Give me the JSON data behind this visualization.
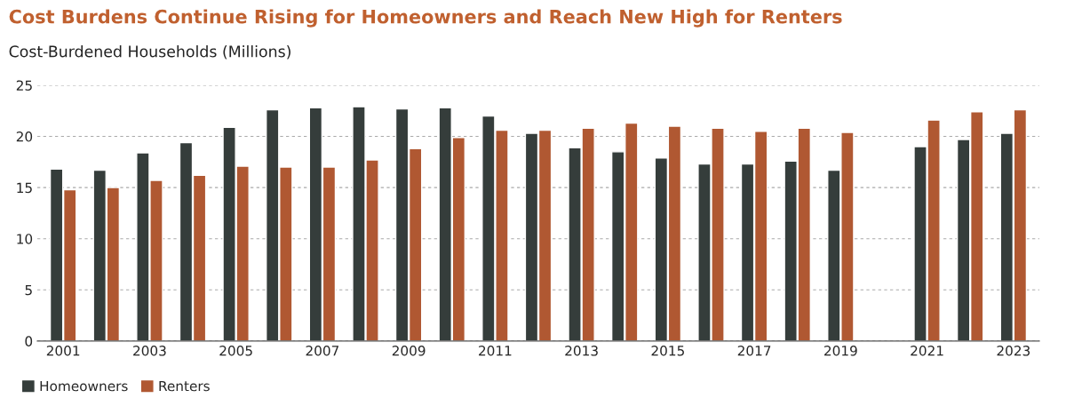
{
  "chart_data": {
    "type": "bar",
    "title": "Cost Burdens Continue Rising for Homeowners and Reach New High for Renters",
    "ylabel": "Cost-Burdened Households (Millions)",
    "categories": [
      "2001",
      null,
      "2003",
      null,
      "2005",
      null,
      "2007",
      null,
      "2009",
      null,
      "2011",
      null,
      "2013",
      null,
      "2015",
      null,
      "2017",
      null,
      "2019",
      null,
      "2021",
      null,
      "2023"
    ],
    "series": [
      {
        "name": "Homeowners",
        "color": "#353d3b",
        "values": [
          16.8,
          16.7,
          18.4,
          19.4,
          20.9,
          22.6,
          22.8,
          22.9,
          22.7,
          22.8,
          22.0,
          20.3,
          18.9,
          18.5,
          17.9,
          17.3,
          17.3,
          17.6,
          16.7,
          null,
          19.0,
          19.7,
          20.3
        ]
      },
      {
        "name": "Renters",
        "color": "#b05832",
        "values": [
          14.8,
          15.0,
          15.7,
          16.2,
          17.1,
          17.0,
          17.0,
          17.7,
          18.8,
          19.9,
          20.6,
          20.6,
          20.8,
          21.3,
          21.0,
          20.8,
          20.5,
          20.8,
          20.4,
          null,
          21.6,
          22.4,
          22.6
        ]
      }
    ],
    "ylim": [
      0,
      25
    ],
    "yticks": [
      0,
      5,
      10,
      15,
      20,
      25
    ],
    "grid": "y",
    "legend": "bottom left"
  }
}
